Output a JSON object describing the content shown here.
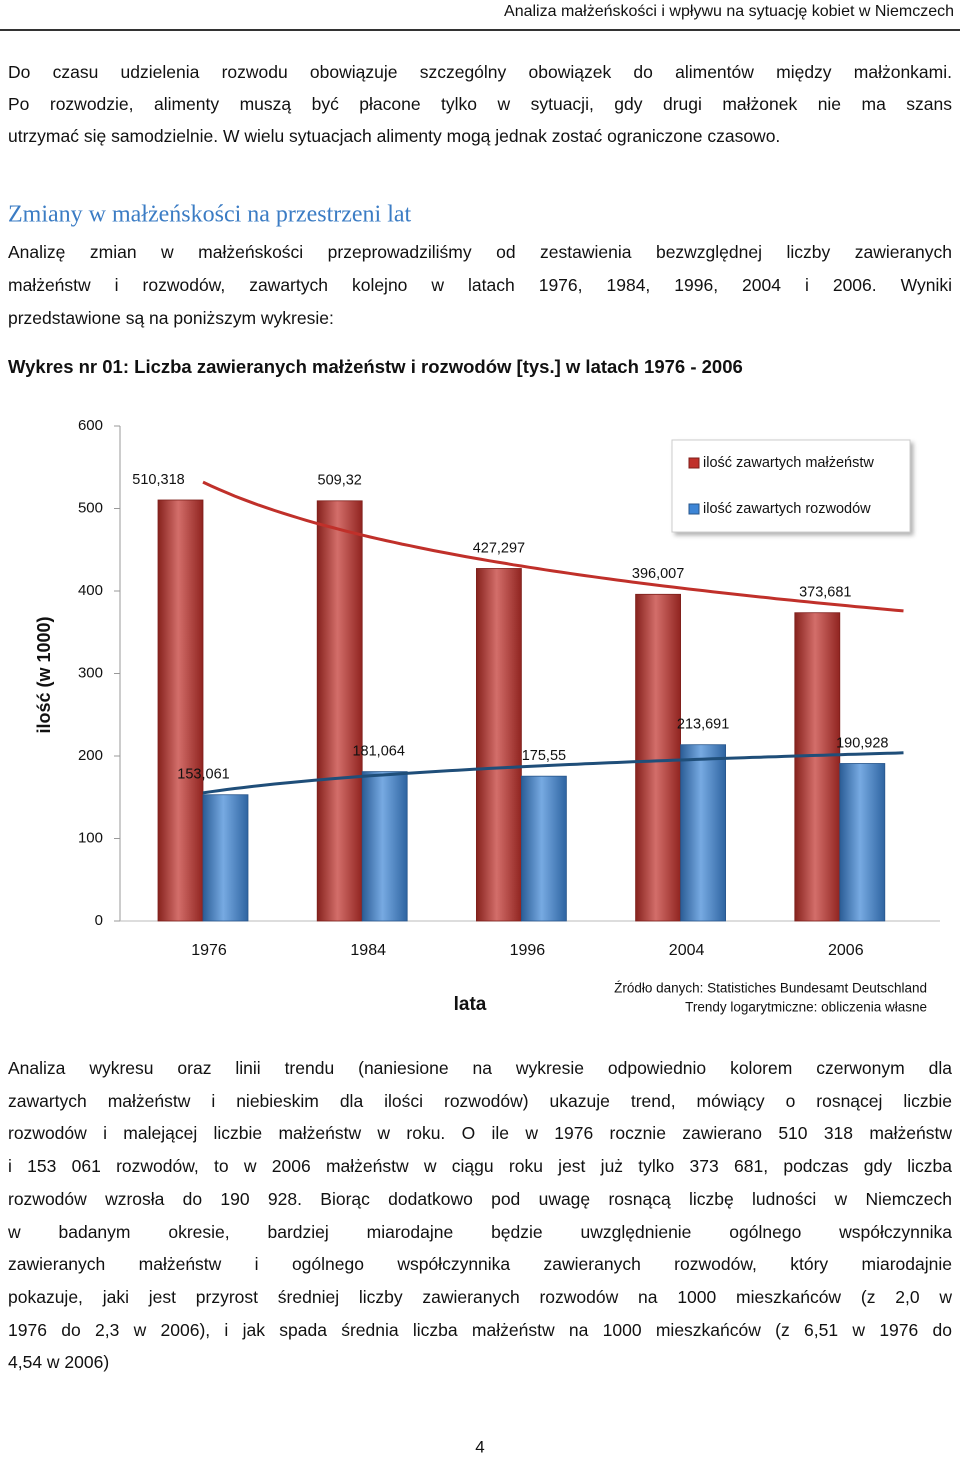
{
  "header": {
    "title": "Analiza małżeńskości i wpływu na sytuację kobiet w Niemczech"
  },
  "intro": {
    "lines": [
      "Do czasu udzielenia rozwodu obowiązuje szczególny obowiązek do alimentów między małżonkami.",
      "Po rozwodzie, alimenty muszą być płacone tylko w sytuacji, gdy drugi małżonek nie ma szans",
      "utrzymać się samodzielnie. W wielu sytuacjach alimenty mogą jednak zostać ograniczone czasowo."
    ]
  },
  "section": {
    "heading": "Zmiany w małżeńskości na przestrzeni lat",
    "lines": [
      "Analizę zmian w małżeńskości przeprowadziliśmy od zestawienia bezwzględnej liczby zawieranych",
      "małżeństw i rozwodów, zawartych kolejno w latach 1976, 1984, 1996, 2004 i 2006. Wyniki",
      "przedstawione są na poniższym wykresie:"
    ],
    "caption": "Wykres nr 01: Liczba zawieranych małżeństw i rozwodów [tys.] w latach 1976 - 2006"
  },
  "chart_data": {
    "type": "bar",
    "categories": [
      "1976",
      "1984",
      "1996",
      "2004",
      "2006"
    ],
    "series": [
      {
        "name": "ilość zawartych małżeństw",
        "color": "#c0302a",
        "trend_color": "#c0302a",
        "values": [
          510.318,
          509.32,
          427.297,
          396.007,
          373.681
        ],
        "value_labels": [
          "510,318",
          "509,32",
          "427,297",
          "396,007",
          "373,681"
        ]
      },
      {
        "name": "ilość zawartych rozwodów",
        "color": "#3d85d6",
        "trend_color": "#1f4e79",
        "values": [
          153.061,
          181.064,
          175.55,
          213.691,
          190.928
        ],
        "value_labels": [
          "153,061",
          "181,064",
          "175,55",
          "213,691",
          "190,928"
        ]
      }
    ],
    "ylim": [
      0,
      600
    ],
    "yticks": [
      0,
      100,
      200,
      300,
      400,
      500,
      600
    ],
    "y_label": "ilość (w 1000)",
    "x_label": "lata",
    "trendline": "logarithmic",
    "legend": "top-right",
    "notes": [
      "Źródło danych: Statistiches Bundesamt Deutschland",
      "Trendy logarytmiczne: obliczenia własne"
    ]
  },
  "outro": {
    "lines": [
      "Analiza wykresu oraz linii trendu (naniesione na wykresie odpowiednio kolorem czerwonym dla",
      "zawartych małżeństw i niebieskim dla ilości rozwodów) ukazuje trend, mówiący o rosnącej liczbie",
      "rozwodów i malejącej liczbie małżeństw w roku. O ile w 1976 rocznie zawierano 510 318 małżeństw",
      "i 153 061 rozwodów, to w 2006 małżeństw w ciągu roku jest już tylko 373 681, podczas gdy liczba",
      "rozwodów wzrosła do 190 928. Biorąc dodatkowo pod uwagę rosnącą liczbę ludności w Niemczech",
      "w badanym okresie, bardziej miarodajne będzie uwzględnienie ogólnego współczynnika",
      "zawieranych małżeństw i ogólnego współczynnika zawieranych rozwodów, który miarodajnie",
      "pokazuje, jaki jest przyrost średniej liczby zawieranych rozwodów na 1000 mieszkańców (z 2,0 w",
      "1976 do 2,3 w 2006), i jak spada średnia liczba małżeństw na 1000 mieszkańców (z 6,51 w 1976 do",
      "4,54 w 2006)"
    ]
  },
  "page_number": "4"
}
